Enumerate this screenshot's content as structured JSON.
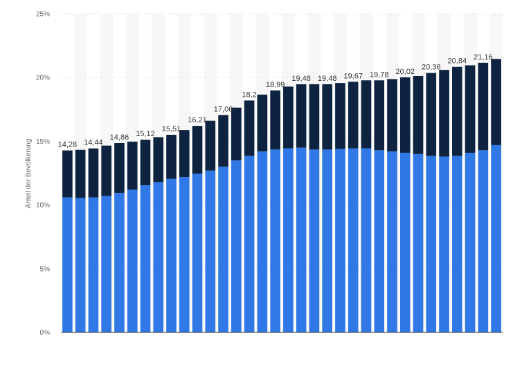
{
  "chart_data": {
    "type": "bar",
    "stacked": true,
    "ylabel": "Anteil der Bevölkerung",
    "ylim": [
      0,
      25
    ],
    "yticks": [
      "0%",
      "5%",
      "10%",
      "15%",
      "20%",
      "25%"
    ],
    "grid": true,
    "series": [
      {
        "color": "#2f78e6",
        "values": [
          10.6,
          10.55,
          10.6,
          10.7,
          10.95,
          11.2,
          11.55,
          11.8,
          12.05,
          12.2,
          12.45,
          12.7,
          13.0,
          13.5,
          13.85,
          14.2,
          14.35,
          14.45,
          14.5,
          14.35,
          14.35,
          14.4,
          14.45,
          14.45,
          14.3,
          14.2,
          14.1,
          14.0,
          13.85,
          13.8,
          13.85,
          14.1,
          14.3,
          14.7
        ]
      },
      {
        "color": "#0d2340",
        "values": [
          3.68,
          3.78,
          3.84,
          3.96,
          3.91,
          3.77,
          3.57,
          3.52,
          3.46,
          3.68,
          3.76,
          3.91,
          4.06,
          4.14,
          4.35,
          4.46,
          4.64,
          4.84,
          4.98,
          5.13,
          5.13,
          5.17,
          5.22,
          5.33,
          5.48,
          5.68,
          5.92,
          6.12,
          6.51,
          6.8,
          6.99,
          6.86,
          6.86,
          6.76
        ]
      }
    ],
    "totals": [
      14.28,
      14.33,
      14.44,
      14.66,
      14.86,
      14.97,
      15.12,
      15.32,
      15.51,
      15.88,
      16.21,
      16.61,
      17.06,
      17.64,
      18.2,
      18.66,
      18.99,
      19.29,
      19.48,
      19.48,
      19.48,
      19.57,
      19.67,
      19.78,
      19.78,
      19.88,
      20.02,
      20.12,
      20.36,
      20.6,
      20.84,
      20.96,
      21.16,
      21.46
    ],
    "labels": [
      "14,28",
      "",
      "14,44",
      "",
      "14,86",
      "",
      "15,12",
      "",
      "15,51",
      "",
      "16,21",
      "",
      "17,06",
      "",
      "18,2",
      "",
      "18,99",
      "",
      "19,48",
      "",
      "19,48",
      "",
      "19,67",
      "",
      "19,78",
      "",
      "20,02",
      "",
      "20,36",
      "",
      "20,84",
      "",
      "21,16",
      ""
    ]
  }
}
